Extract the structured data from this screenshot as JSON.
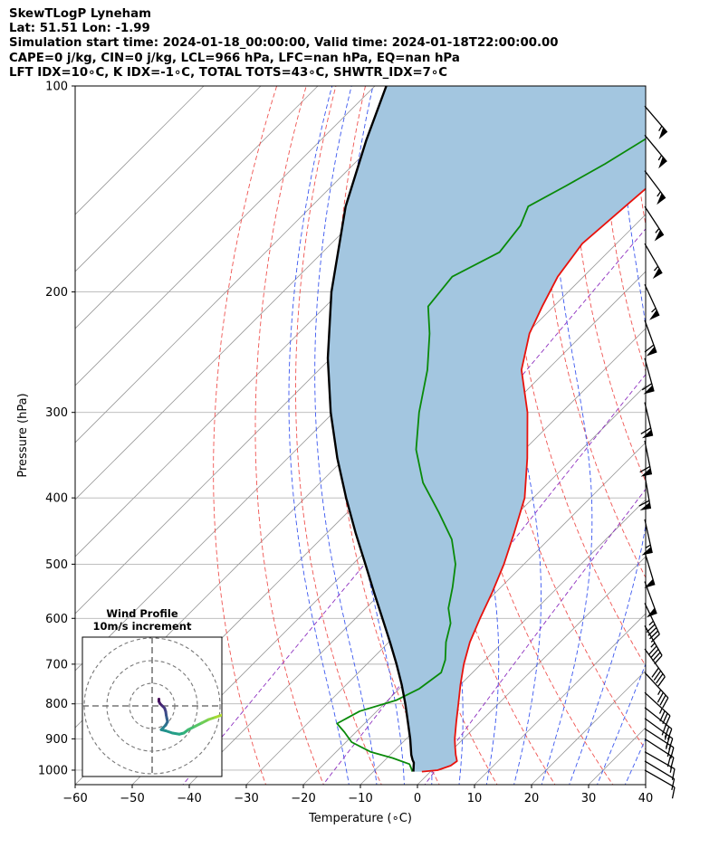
{
  "header": {
    "line1": "SkewTLogP Lyneham",
    "line2": "Lat: 51.51   Lon: -1.99",
    "line3": "Simulation start time: 2024-01-18_00:00:00, Valid time: 2024-01-18T22:00:00.00",
    "line4": "CAPE=0 j/kg, CIN=0 j/kg, LCL=966 hPa, LFC=nan hPa, EQ=nan hPa",
    "line5": "LFT IDX=10∘C, K IDX=-1∘C, TOTAL TOTS=43∘C, SHWTR_IDX=7∘C"
  },
  "colors": {
    "temperature": "#e8120c",
    "dewpoint": "#098a09",
    "parcel": "#000000",
    "cape_fill": "#a3c6e0",
    "dry_adiabat": "#ef5350",
    "moist_adiabat": "#3a56ef",
    "mixing_ratio": "#8d2fbf",
    "isotherm": "#9a9a9a",
    "grid": "#b5b5b5"
  },
  "chart_data": [
    {
      "type": "line",
      "kind": "skewt-logp",
      "title": "SkewTLogP Lyneham",
      "xlabel": "Temperature (∘C)",
      "ylabel": "Pressure (hPa)",
      "xlim": [
        -60,
        40
      ],
      "ylim": [
        1050,
        100
      ],
      "x_ticks": [
        -60,
        -50,
        -40,
        -30,
        -20,
        -10,
        0,
        10,
        20,
        30,
        40
      ],
      "x_tick_labels": [
        "−60",
        "−50",
        "−40",
        "−30",
        "−20",
        "−10",
        "0",
        "10",
        "20",
        "30",
        "40"
      ],
      "y_ticks": [
        100,
        200,
        300,
        400,
        500,
        600,
        700,
        800,
        900,
        1000
      ],
      "y_tick_labels": [
        "100",
        "200",
        "300",
        "400",
        "500",
        "600",
        "700",
        "800",
        "900",
        "1000"
      ],
      "skew": 45,
      "isotherms": [
        -160,
        -150,
        -140,
        -130,
        -120,
        -110,
        -100,
        -90,
        -80,
        -70,
        -60,
        -50,
        -40,
        -30,
        -20,
        -10,
        0,
        10,
        20,
        30,
        40
      ],
      "dry_adiabats_theta_c": [
        -30,
        -20,
        -10,
        0,
        10,
        20,
        30,
        40,
        50,
        60,
        70,
        80,
        90,
        100,
        110,
        120,
        130,
        140
      ],
      "moist_adiabats_thetaw_c": [
        -15,
        -10,
        -5,
        0,
        5,
        10,
        15,
        20,
        25,
        30,
        35
      ],
      "mixing_ratio_gkg": [
        0.1,
        1,
        4
      ],
      "series": [
        {
          "name": "Temperature",
          "pressure": [
            1005,
            1000,
            985,
            970,
            950,
            925,
            900,
            850,
            800,
            750,
            700,
            650,
            600,
            550,
            500,
            450,
            400,
            350,
            300,
            260,
            230,
            210,
            190,
            170,
            150,
            125,
            110,
            100
          ],
          "temperature": [
            -1.5,
            1.0,
            2.5,
            2.8,
            1.5,
            0.0,
            -1.5,
            -4.2,
            -7.0,
            -10.0,
            -13.0,
            -15.8,
            -18.2,
            -20.6,
            -23.5,
            -27.2,
            -31.5,
            -38.0,
            -46.0,
            -54.5,
            -59.5,
            -62.0,
            -64.5,
            -66.0,
            -65.0,
            -63.5,
            -62.5,
            -62.0
          ]
        },
        {
          "name": "Dewpoint",
          "pressure": [
            1005,
            1000,
            980,
            960,
            940,
            910,
            880,
            855,
            820,
            790,
            760,
            720,
            690,
            650,
            610,
            580,
            540,
            500,
            460,
            420,
            380,
            340,
            300,
            260,
            230,
            210,
            190,
            175,
            160,
            150,
            140,
            130,
            115,
            100
          ],
          "temperature": [
            -3.2,
            -3.5,
            -5.0,
            -9.0,
            -14.0,
            -19.0,
            -22.0,
            -24.8,
            -23.0,
            -18.5,
            -16.5,
            -15.5,
            -17.0,
            -20.0,
            -22.5,
            -25.5,
            -28.5,
            -32.0,
            -37.0,
            -44.0,
            -52.0,
            -59.0,
            -65.0,
            -71.0,
            -77.0,
            -82.0,
            -83.0,
            -79.0,
            -80.0,
            -82.0,
            -79.0,
            -76.0,
            -72.0,
            -70.0
          ]
        },
        {
          "name": "Parcel",
          "pressure": [
            1005,
            975,
            966,
            950,
            900,
            850,
            800,
            750,
            700,
            650,
            600,
            550,
            500,
            450,
            400,
            350,
            300,
            250,
            200,
            150,
            120,
            100
          ],
          "temperature": [
            -3.0,
            -4.5,
            -5.2,
            -6.3,
            -9.3,
            -12.7,
            -16.3,
            -20.3,
            -24.8,
            -29.8,
            -35.3,
            -41.3,
            -47.8,
            -55.0,
            -62.8,
            -71.3,
            -80.5,
            -90.5,
            -101.5,
            -114.0,
            -122.0,
            -128.0
          ]
        }
      ],
      "wind_barbs": [
        {
          "pressure": 1000,
          "u_kt": -7,
          "v_kt": 4
        },
        {
          "pressure": 970,
          "u_kt": -10,
          "v_kt": 6
        },
        {
          "pressure": 940,
          "u_kt": -14,
          "v_kt": 8
        },
        {
          "pressure": 900,
          "u_kt": -17,
          "v_kt": 11
        },
        {
          "pressure": 870,
          "u_kt": -20,
          "v_kt": 13
        },
        {
          "pressure": 840,
          "u_kt": -22,
          "v_kt": 16
        },
        {
          "pressure": 810,
          "u_kt": -24,
          "v_kt": 19
        },
        {
          "pressure": 770,
          "u_kt": -25,
          "v_kt": 23
        },
        {
          "pressure": 720,
          "u_kt": -25,
          "v_kt": 27
        },
        {
          "pressure": 665,
          "u_kt": -24,
          "v_kt": 33
        },
        {
          "pressure": 615,
          "u_kt": -22,
          "v_kt": 38
        },
        {
          "pressure": 570,
          "u_kt": -20,
          "v_kt": 42
        },
        {
          "pressure": 530,
          "u_kt": -17,
          "v_kt": 46
        },
        {
          "pressure": 480,
          "u_kt": -15,
          "v_kt": 50
        },
        {
          "pressure": 430,
          "u_kt": -12,
          "v_kt": 54
        },
        {
          "pressure": 370,
          "u_kt": -10,
          "v_kt": 58
        },
        {
          "pressure": 330,
          "u_kt": -12,
          "v_kt": 60
        },
        {
          "pressure": 290,
          "u_kt": -14,
          "v_kt": 60
        },
        {
          "pressure": 250,
          "u_kt": -16,
          "v_kt": 58
        },
        {
          "pressure": 220,
          "u_kt": -20,
          "v_kt": 55
        },
        {
          "pressure": 195,
          "u_kt": -24,
          "v_kt": 52
        },
        {
          "pressure": 170,
          "u_kt": -28,
          "v_kt": 48
        },
        {
          "pressure": 150,
          "u_kt": -30,
          "v_kt": 46
        },
        {
          "pressure": 133,
          "u_kt": -33,
          "v_kt": 44
        },
        {
          "pressure": 118,
          "u_kt": -35,
          "v_kt": 42
        },
        {
          "pressure": 107,
          "u_kt": -36,
          "v_kt": 42
        }
      ]
    },
    {
      "type": "line",
      "kind": "hodograph",
      "title": "Wind Profile",
      "subtitle": "10m/s increment",
      "ring_interval_ms": 10,
      "rings": [
        10,
        20,
        30
      ],
      "u": [
        3.0,
        3.0,
        3.5,
        4.5,
        5.5,
        6.0,
        6.2,
        6.5,
        6.8,
        6.0,
        5.0,
        4.0,
        6.0,
        9.0,
        12.0,
        14.0,
        16.0,
        19.0,
        22.0,
        25.0,
        28.0,
        31.0,
        33.0,
        35.0,
        37.0
      ],
      "v": [
        3.0,
        2.0,
        1.0,
        0.0,
        -1.0,
        -2.5,
        -4.0,
        -5.5,
        -7.0,
        -8.5,
        -9.5,
        -10.5,
        -11.0,
        -12.0,
        -12.5,
        -12.0,
        -10.5,
        -9.0,
        -7.5,
        -6.0,
        -5.0,
        -4.0,
        -3.5,
        -3.0,
        -3.0
      ]
    }
  ]
}
